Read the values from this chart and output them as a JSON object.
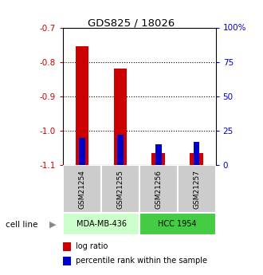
{
  "title": "GDS825 / 18026",
  "samples": [
    "GSM21254",
    "GSM21255",
    "GSM21256",
    "GSM21257"
  ],
  "log_ratio": [
    -0.755,
    -0.82,
    -1.065,
    -1.065
  ],
  "percentile_rank": [
    20,
    22,
    15,
    17
  ],
  "ylim_left": [
    -1.1,
    -0.7
  ],
  "ylim_right": [
    0,
    100
  ],
  "left_ticks": [
    -1.1,
    -1.0,
    -0.9,
    -0.8,
    -0.7
  ],
  "right_ticks": [
    0,
    25,
    50,
    75,
    100
  ],
  "bar_width": 0.35,
  "red_color": "#cc0000",
  "blue_color": "#0000cc",
  "left_tick_color": "#cc0000",
  "right_tick_color": "#0000cc",
  "grid_color": "#000000",
  "sample_box_color": "#cccccc",
  "cell_line_color_1": "#ccffcc",
  "cell_line_color_2": "#44cc44",
  "cell_line_names": [
    "MDA-MB-436",
    "HCC 1954"
  ],
  "cell_line_spans": [
    [
      0,
      2
    ],
    [
      2,
      4
    ]
  ]
}
